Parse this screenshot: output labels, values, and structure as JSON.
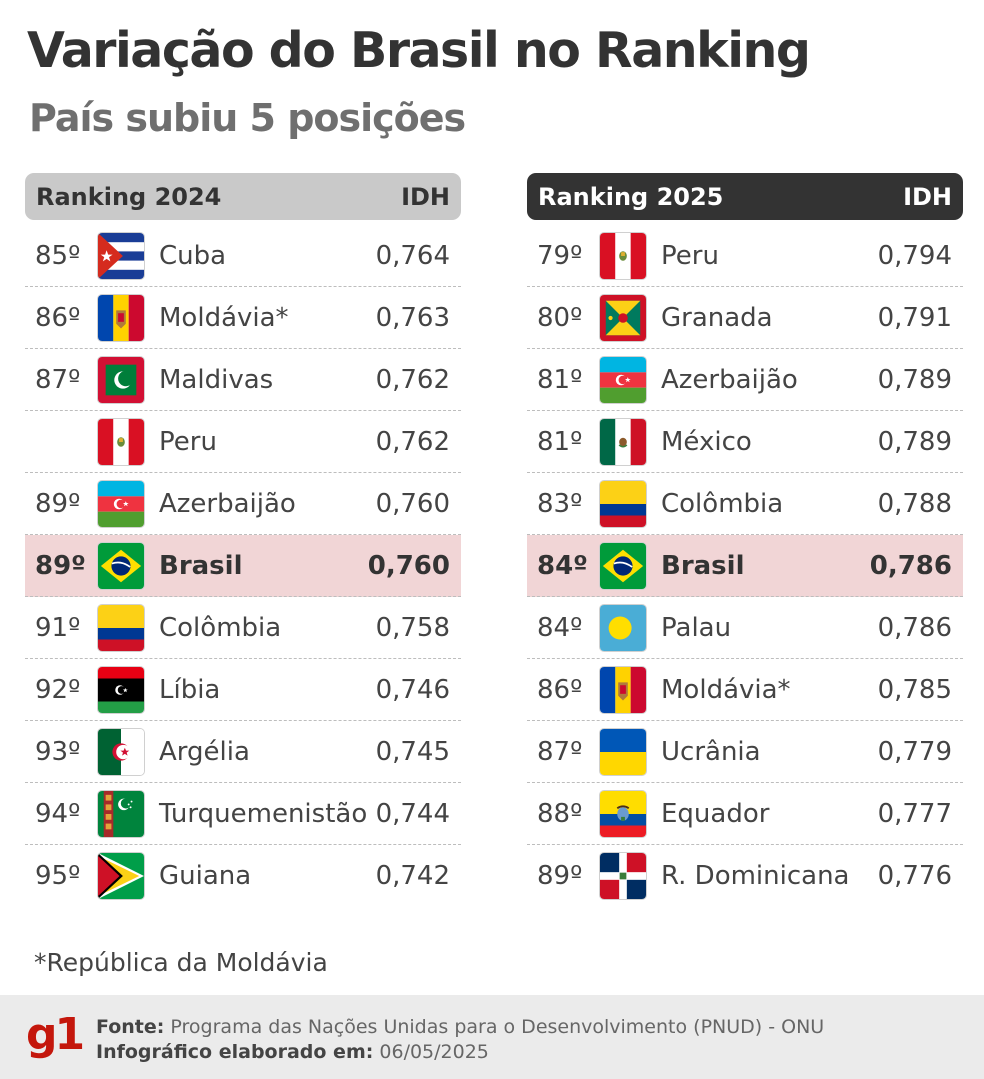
{
  "header": {
    "title": "Variação do Brasil no Ranking",
    "subtitle": "País subiu 5 posições"
  },
  "left_table": {
    "heading": "Ranking 2024",
    "idh_label": "IDH",
    "rows": [
      {
        "rank": "85º",
        "country": "Cuba",
        "idh": "0,764",
        "flag": "cuba-flag-icon"
      },
      {
        "rank": "86º",
        "country": "Moldávia*",
        "idh": "0,763",
        "flag": "moldova-flag-icon"
      },
      {
        "rank": "87º",
        "country": "Maldivas",
        "idh": "0,762",
        "flag": "maldives-flag-icon"
      },
      {
        "rank": "",
        "country": "Peru",
        "idh": "0,762",
        "flag": "peru-flag-icon"
      },
      {
        "rank": "89º",
        "country": "Azerbaijão",
        "idh": "0,760",
        "flag": "azerbaijan-flag-icon"
      },
      {
        "rank": "89º",
        "country": "Brasil",
        "idh": "0,760",
        "flag": "brazil-flag-icon",
        "highlight": true
      },
      {
        "rank": "91º",
        "country": "Colômbia",
        "idh": "0,758",
        "flag": "colombia-flag-icon"
      },
      {
        "rank": "92º",
        "country": "Líbia",
        "idh": "0,746",
        "flag": "libya-flag-icon"
      },
      {
        "rank": "93º",
        "country": "Argélia",
        "idh": "0,745",
        "flag": "algeria-flag-icon"
      },
      {
        "rank": "94º",
        "country": "Turquemenistão",
        "idh": "0,744",
        "flag": "turkmenistan-flag-icon"
      },
      {
        "rank": "95º",
        "country": "Guiana",
        "idh": "0,742",
        "flag": "guyana-flag-icon"
      }
    ]
  },
  "right_table": {
    "heading": "Ranking 2025",
    "idh_label": "IDH",
    "rows": [
      {
        "rank": "79º",
        "country": "Peru",
        "idh": "0,794",
        "flag": "peru-flag-icon"
      },
      {
        "rank": "80º",
        "country": "Granada",
        "idh": "0,791",
        "flag": "grenada-flag-icon"
      },
      {
        "rank": "81º",
        "country": "Azerbaijão",
        "idh": "0,789",
        "flag": "azerbaijan-flag-icon"
      },
      {
        "rank": "81º",
        "country": "México",
        "idh": "0,789",
        "flag": "mexico-flag-icon"
      },
      {
        "rank": "83º",
        "country": "Colômbia",
        "idh": "0,788",
        "flag": "colombia-flag-icon"
      },
      {
        "rank": "84º",
        "country": "Brasil",
        "idh": "0,786",
        "flag": "brazil-flag-icon",
        "highlight": true
      },
      {
        "rank": "84º",
        "country": "Palau",
        "idh": "0,786",
        "flag": "palau-flag-icon"
      },
      {
        "rank": "86º",
        "country": "Moldávia*",
        "idh": "0,785",
        "flag": "moldova-flag-icon"
      },
      {
        "rank": "87º",
        "country": "Ucrânia",
        "idh": "0,779",
        "flag": "ukraine-flag-icon"
      },
      {
        "rank": "88º",
        "country": "Equador",
        "idh": "0,777",
        "flag": "ecuador-flag-icon"
      },
      {
        "rank": "89º",
        "country": "R. Dominicana",
        "idh": "0,776",
        "flag": "dominican-republic-flag-icon"
      }
    ]
  },
  "footnote": "*República da Moldávia",
  "footer": {
    "logo": "g1",
    "source_label": "Fonte:",
    "source_text": "Programa das Nações Unidas para o Desenvolvimento (PNUD) - ONU",
    "date_label": "Infográfico elaborado em:",
    "date_text": "06/05/2025"
  },
  "colors": {
    "highlight_row": "#f1d5d6",
    "left_header": "#c9c9c9",
    "right_header": "#333333",
    "brand_red": "#c4170c"
  }
}
